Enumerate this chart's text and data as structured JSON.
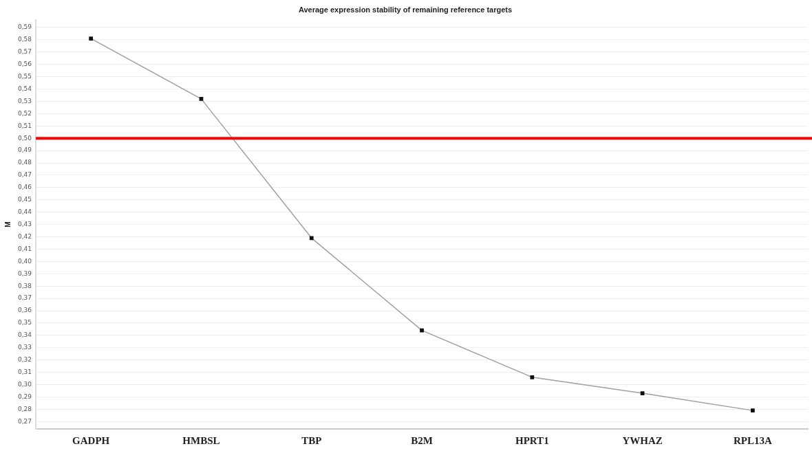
{
  "chart_data": {
    "type": "line",
    "title": "Average expression stability of remaining reference targets",
    "ylabel": "M",
    "categories": [
      "GADPH",
      "HMBSL",
      "TBP",
      "B2M",
      "HPRT1",
      "YWHAZ",
      "RPL13A"
    ],
    "series": [
      {
        "color": "#a0a0a0",
        "values": [
          0.581,
          0.532,
          0.419,
          0.344,
          0.306,
          0.293,
          0.279
        ]
      }
    ],
    "ylim": [
      0.264,
      0.596
    ],
    "yticks": [
      {
        "value": 0.27,
        "label": "0,27"
      },
      {
        "value": 0.28,
        "label": "0,28"
      },
      {
        "value": 0.29,
        "label": "0,29"
      },
      {
        "value": 0.3,
        "label": "0,30"
      },
      {
        "value": 0.31,
        "label": "0,31"
      },
      {
        "value": 0.32,
        "label": "0,32"
      },
      {
        "value": 0.33,
        "label": "0,33"
      },
      {
        "value": 0.34,
        "label": "0,34"
      },
      {
        "value": 0.35,
        "label": "0,35"
      },
      {
        "value": 0.36,
        "label": "0,36"
      },
      {
        "value": 0.37,
        "label": "0,37"
      },
      {
        "value": 0.38,
        "label": "0,38"
      },
      {
        "value": 0.39,
        "label": "0,39"
      },
      {
        "value": 0.4,
        "label": "0,40"
      },
      {
        "value": 0.41,
        "label": "0,41"
      },
      {
        "value": 0.42,
        "label": "0,42"
      },
      {
        "value": 0.43,
        "label": "0,43"
      },
      {
        "value": 0.44,
        "label": "0,44"
      },
      {
        "value": 0.45,
        "label": "0,45"
      },
      {
        "value": 0.46,
        "label": "0,46"
      },
      {
        "value": 0.47,
        "label": "0,47"
      },
      {
        "value": 0.48,
        "label": "0,48"
      },
      {
        "value": 0.49,
        "label": "0,49"
      },
      {
        "value": 0.5,
        "label": "0,50"
      },
      {
        "value": 0.51,
        "label": "0,51"
      },
      {
        "value": 0.52,
        "label": "0,52"
      },
      {
        "value": 0.53,
        "label": "0,53"
      },
      {
        "value": 0.54,
        "label": "0,54"
      },
      {
        "value": 0.55,
        "label": "0,55"
      },
      {
        "value": 0.56,
        "label": "0,56"
      },
      {
        "value": 0.57,
        "label": "0,57"
      },
      {
        "value": 0.58,
        "label": "0,58"
      },
      {
        "value": 0.59,
        "label": "0,59"
      }
    ],
    "ref_lines": [
      {
        "axis": "y",
        "value": 0.5,
        "color": "#ff0000"
      }
    ],
    "grid": "y",
    "legend": false,
    "marker": "square",
    "line_style": "solid"
  }
}
